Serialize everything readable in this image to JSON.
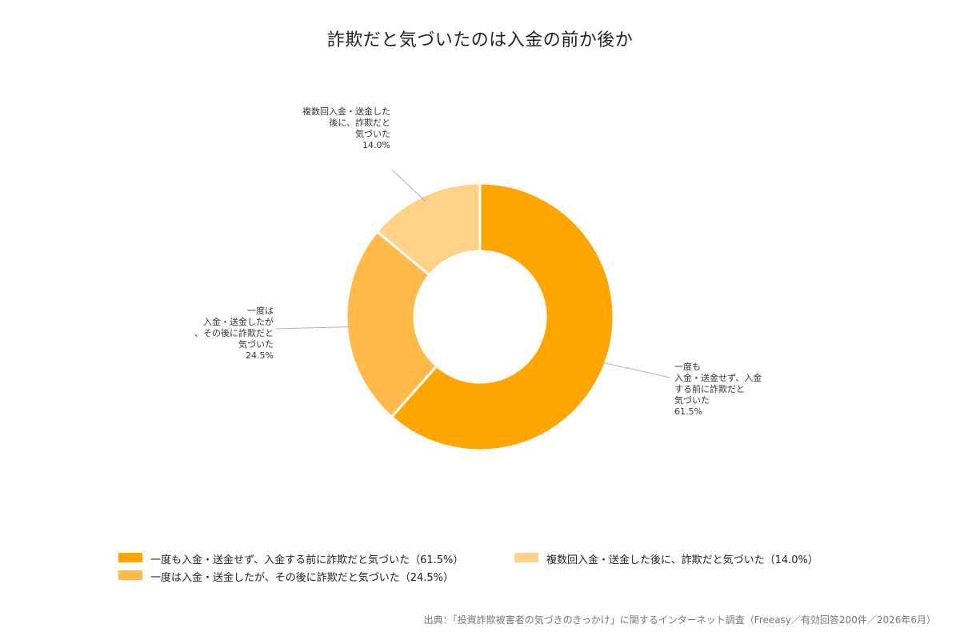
{
  "chart_data": {
    "type": "pie",
    "title": "詐欺だと気づいたのは入金の前か後か",
    "slices": [
      {
        "label": "一度も入金・送金せず、入金する前に詐欺だと気づいた",
        "callout": "一度も\n入金・送金せず、入金\nする前に詐欺だと\n気づいた\n61.5%",
        "value": 61.5,
        "color": "#FFA500"
      },
      {
        "label": "一度は入金・送金したが、その後に詐欺だと気づいた",
        "callout": "一度は\n入金・送金したが\n、その後に詐欺だと\n気づいた\n24.5%",
        "value": 24.5,
        "color": "#FFBA4A"
      },
      {
        "label": "複数回入金・送金した後に、詐欺だと気づいた",
        "callout": "複数回入金・送金した\n後に、詐欺だと\n気づいた\n14.0%",
        "value": 14.0,
        "color": "#FFD288"
      }
    ],
    "legend": [
      "一度も入金・送金せず、入金する前に詐欺だと気づいた（61.5%）",
      "複数回入金・送金した後に、詐欺だと気づいた（14.0%）",
      "一度は入金・送金したが、その後に詐欺だと気づいた（24.5%）"
    ],
    "legend_position": "bottom",
    "hole": "donut"
  },
  "source": "出典：「投資詐欺被害者の気づきのきっかけ」に関するインターネット調査（Freeasy／有効回答200件／2026年6月）"
}
